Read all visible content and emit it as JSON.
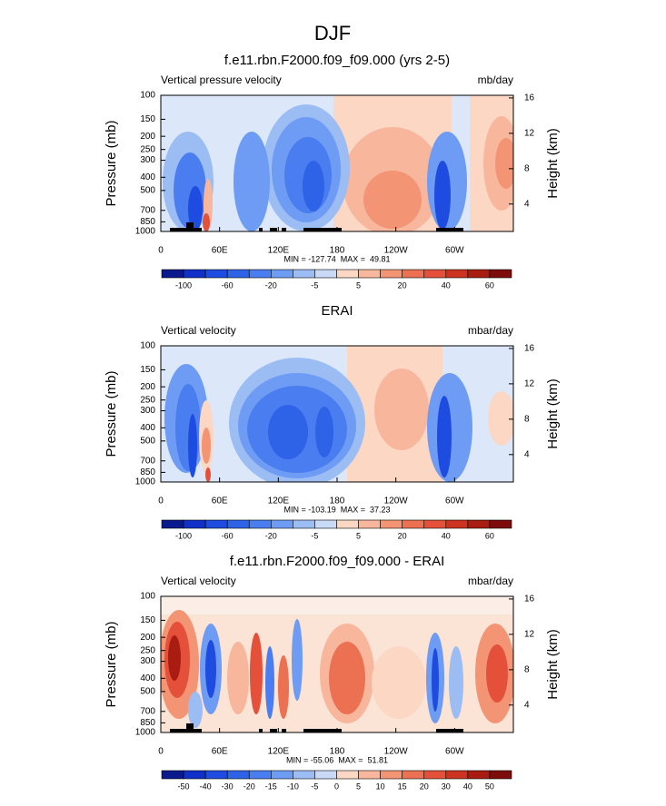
{
  "title": "DJF",
  "chart_data": [
    {
      "type": "contour",
      "title": "f.e11.rbn.F2000.f09_f09.000 (yrs 2-5)",
      "left_label": "Vertical pressure velocity",
      "right_label": "mb/day",
      "y_label": "Pressure (mb)",
      "y2_label": "Height (km)",
      "stats": "MIN = -127.74  MAX =  49.81",
      "xlim": [
        0,
        360
      ],
      "xticks": [
        0,
        {
          "value": 60,
          "label": "60E"
        },
        {
          "value": 120,
          "label": "120E"
        },
        180,
        {
          "value": 240,
          "label": "120W"
        },
        {
          "value": 300,
          "label": "60W"
        }
      ],
      "ylim": [
        1000,
        100
      ],
      "ylog": true,
      "yticks": [
        100,
        150,
        200,
        250,
        300,
        400,
        500,
        700,
        850,
        1000
      ],
      "y2lim": [
        0.9,
        16.3
      ],
      "y2ticks": [
        4,
        8,
        12,
        16
      ],
      "colorbar": {
        "colors": [
          "#0a1a8c",
          "#1030c8",
          "#1e4ce0",
          "#2e63e8",
          "#4a7ef0",
          "#6e9cf4",
          "#9cbcf4",
          "#c8daf8",
          "#fbd7c4",
          "#f8b69c",
          "#f39474",
          "#ec7052",
          "#e4503a",
          "#cc3320",
          "#a81c12",
          "#7e0c0a"
        ],
        "ticks": [
          -100,
          -60,
          -20,
          -5,
          5,
          20,
          40,
          60
        ]
      }
    },
    {
      "type": "contour",
      "title": "ERAI",
      "left_label": "Vertical velocity",
      "right_label": "mbar/day",
      "y_label": "Pressure (mb)",
      "y2_label": "Height (km)",
      "stats": "MIN = -103.19  MAX =  37.23",
      "xlim": [
        0,
        360
      ],
      "xticks": [
        0,
        {
          "value": 60,
          "label": "60E"
        },
        {
          "value": 120,
          "label": "120E"
        },
        180,
        {
          "value": 240,
          "label": "120W"
        },
        {
          "value": 300,
          "label": "60W"
        }
      ],
      "ylim": [
        1000,
        100
      ],
      "ylog": true,
      "yticks": [
        100,
        150,
        200,
        250,
        300,
        400,
        500,
        700,
        850,
        1000
      ],
      "y2lim": [
        0.9,
        16.3
      ],
      "y2ticks": [
        4,
        8,
        12,
        16
      ],
      "colorbar": {
        "colors": [
          "#0a1a8c",
          "#1030c8",
          "#1e4ce0",
          "#2e63e8",
          "#4a7ef0",
          "#6e9cf4",
          "#9cbcf4",
          "#c8daf8",
          "#fbd7c4",
          "#f8b69c",
          "#f39474",
          "#ec7052",
          "#e4503a",
          "#cc3320",
          "#a81c12",
          "#7e0c0a"
        ],
        "ticks": [
          -100,
          -60,
          -20,
          -5,
          5,
          20,
          40,
          60
        ]
      }
    },
    {
      "type": "contour",
      "title": "f.e11.rbn.F2000.f09_f09.000 - ERAI",
      "left_label": "Vertical velocity",
      "right_label": "mbar/day",
      "y_label": "Pressure (mb)",
      "y2_label": "Height (km)",
      "stats": "MIN = -55.06  MAX =  51.81",
      "xlim": [
        0,
        360
      ],
      "xticks": [
        0,
        {
          "value": 60,
          "label": "60E"
        },
        {
          "value": 120,
          "label": "120E"
        },
        180,
        {
          "value": 240,
          "label": "120W"
        },
        {
          "value": 300,
          "label": "60W"
        }
      ],
      "ylim": [
        1000,
        100
      ],
      "ylog": true,
      "yticks": [
        100,
        150,
        200,
        250,
        300,
        400,
        500,
        700,
        850,
        1000
      ],
      "y2lim": [
        0.9,
        16.3
      ],
      "y2ticks": [
        4,
        8,
        12,
        16
      ],
      "colorbar": {
        "colors": [
          "#0a1a8c",
          "#1030c8",
          "#1e4ce0",
          "#2e63e8",
          "#4a7ef0",
          "#6e9cf4",
          "#9cbcf4",
          "#c8daf8",
          "#fbd7c4",
          "#f8b69c",
          "#f39474",
          "#ec7052",
          "#e4503a",
          "#cc3320",
          "#a81c12",
          "#7e0c0a"
        ],
        "ticks": [
          -50,
          -40,
          -30,
          -20,
          -15,
          -10,
          -5,
          0,
          5,
          10,
          15,
          20,
          30,
          40,
          50
        ]
      }
    }
  ]
}
